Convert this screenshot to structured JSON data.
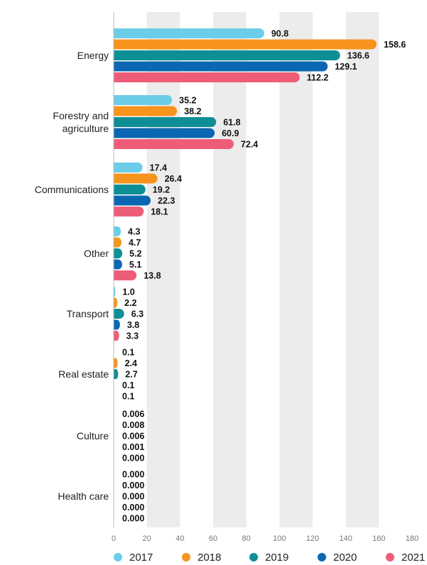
{
  "chart_data": {
    "type": "bar",
    "orientation": "horizontal",
    "categories": [
      "Energy",
      "Forestry and agriculture",
      "Communications",
      "Other",
      "Transport",
      "Real estate",
      "Culture",
      "Health care"
    ],
    "category_lines": [
      [
        "Energy"
      ],
      [
        "Forestry and",
        "agriculture"
      ],
      [
        "Communications"
      ],
      [
        "Other"
      ],
      [
        "Transport"
      ],
      [
        "Real estate"
      ],
      [
        "Culture"
      ],
      [
        "Health care"
      ]
    ],
    "series": [
      {
        "name": "2017",
        "color": "#6ccde8",
        "values": [
          90.8,
          35.2,
          17.4,
          4.3,
          1.0,
          0.1,
          0.006,
          0.0
        ]
      },
      {
        "name": "2018",
        "color": "#f7941d",
        "values": [
          158.6,
          38.2,
          26.4,
          4.7,
          2.2,
          2.4,
          0.008,
          0.0
        ]
      },
      {
        "name": "2019",
        "color": "#0e8f96",
        "values": [
          136.6,
          61.8,
          19.2,
          5.2,
          6.3,
          2.7,
          0.006,
          0.0
        ]
      },
      {
        "name": "2020",
        "color": "#0b67b1",
        "values": [
          129.1,
          60.9,
          22.3,
          5.1,
          3.8,
          0.1,
          0.001,
          0.0
        ]
      },
      {
        "name": "2021",
        "color": "#ee5d78",
        "values": [
          112.2,
          72.4,
          18.1,
          13.8,
          3.3,
          0.1,
          0.0,
          0.0
        ]
      }
    ],
    "value_labels": [
      [
        "90.8",
        "35.2",
        "17.4",
        "4.3",
        "1.0",
        "0.1",
        "0.006",
        "0.000"
      ],
      [
        "158.6",
        "38.2",
        "26.4",
        "4.7",
        "2.2",
        "2.4",
        "0.008",
        "0.000"
      ],
      [
        "136.6",
        "61.8",
        "19.2",
        "5.2",
        "6.3",
        "2.7",
        "0.006",
        "0.000"
      ],
      [
        "129.1",
        "60.9",
        "22.3",
        "5.1",
        "3.8",
        "0.1",
        "0.001",
        "0.000"
      ],
      [
        "112.2",
        "72.4",
        "18.1",
        "13.8",
        "3.3",
        "0.1",
        "0.000",
        "0.000"
      ]
    ],
    "xlim": [
      0,
      180
    ],
    "xticks": [
      0,
      20,
      40,
      60,
      80,
      100,
      120,
      140,
      160,
      180
    ],
    "title": "",
    "xlabel": "",
    "ylabel": "",
    "grid": "alternating vertical bands",
    "legend_position": "bottom"
  },
  "colors": {
    "band": "#ececec",
    "axis": "#bbbbbb"
  }
}
